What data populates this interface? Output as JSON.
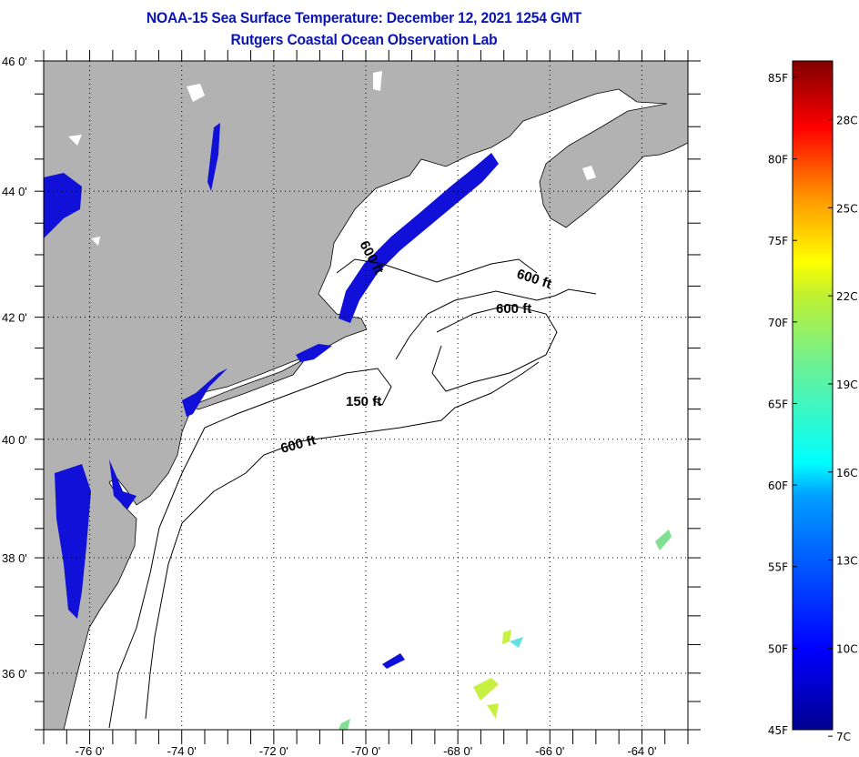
{
  "title": {
    "line1": "NOAA-15 Sea Surface Temperature:  December 12, 2021 1254 GMT",
    "line2": "Rutgers Coastal Ocean Observation Lab"
  },
  "map": {
    "lon_range": [
      -77,
      -63
    ],
    "lat_range": [
      35,
      46
    ],
    "land_color": "#b2b2b2",
    "ocean_color": "#ffffff",
    "lat_labels": [
      {
        "lat": 46,
        "label": "46 0'"
      },
      {
        "lat": 44,
        "label": "44 0'"
      },
      {
        "lat": 42,
        "label": "42 0'"
      },
      {
        "lat": 40,
        "label": "40 0'"
      },
      {
        "lat": 38,
        "label": "38 0'"
      },
      {
        "lat": 36,
        "label": "36 0'"
      }
    ],
    "lon_labels": [
      {
        "lon": -76,
        "label": "-76 0'"
      },
      {
        "lon": -74,
        "label": "-74 0'"
      },
      {
        "lon": -72,
        "label": "-72 0'"
      },
      {
        "lon": -70,
        "label": "-70 0'"
      },
      {
        "lon": -68,
        "label": "-68 0'"
      },
      {
        "lon": -66,
        "label": "-66 0'"
      },
      {
        "lon": -64,
        "label": "-64 0'"
      }
    ],
    "contour_labels": [
      "600 ft",
      "600 ft",
      "600 ft",
      "150 ft",
      "600 ft"
    ]
  },
  "colorbar": {
    "min_f": 45,
    "max_f": 86,
    "colors": [
      "#00008f",
      "#0000ff",
      "#0080ff",
      "#00ffff",
      "#80ff80",
      "#ffff00",
      "#ff8000",
      "#ff0000",
      "#800000"
    ],
    "f_labels": [
      "85F",
      "80F",
      "75F",
      "70F",
      "65F",
      "60F",
      "55F",
      "50F",
      "45F"
    ],
    "f_values": [
      85,
      80,
      75,
      70,
      65,
      60,
      55,
      50,
      45
    ],
    "c_labels": [
      "28C",
      "25C",
      "22C",
      "19C",
      "16C",
      "13C",
      "10C",
      "7C"
    ],
    "c_values": [
      28,
      25,
      22,
      19,
      16,
      13,
      10,
      7
    ]
  }
}
